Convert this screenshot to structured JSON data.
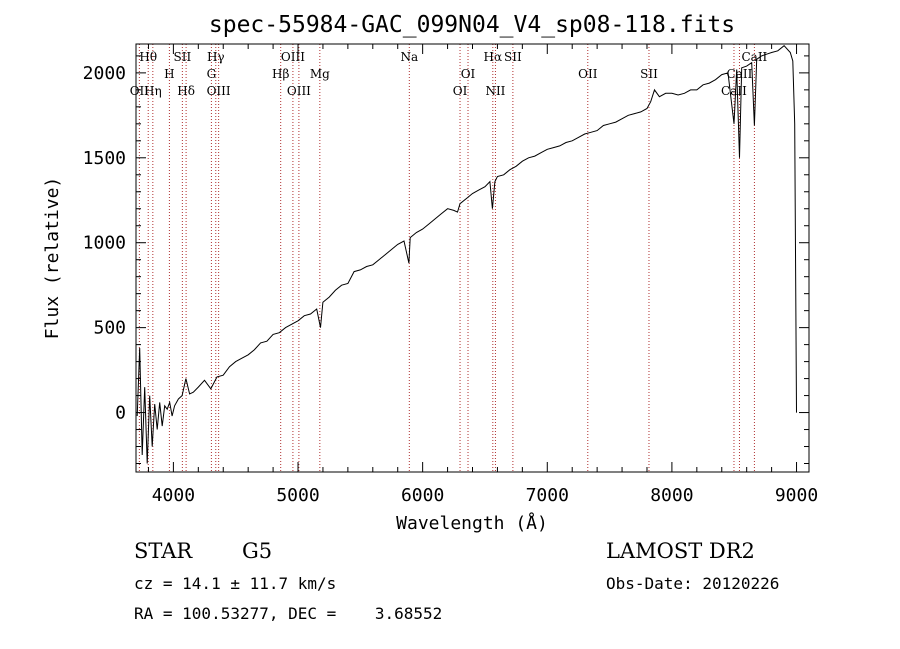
{
  "chart_data": {
    "type": "line",
    "title": "spec-55984-GAC_099N04_V4_sp08-118.fits",
    "xlabel": "Wavelength (Å)",
    "ylabel": "Flux (relative)",
    "xlim": [
      3700,
      9100
    ],
    "ylim": [
      -350,
      2170
    ],
    "xticks": [
      4000,
      5000,
      6000,
      7000,
      8000,
      9000
    ],
    "yticks": [
      0,
      500,
      1000,
      1500,
      2000
    ],
    "grid": false,
    "series": [
      {
        "color": "#000000",
        "x": [
          3710,
          3730,
          3750,
          3770,
          3790,
          3810,
          3830,
          3850,
          3870,
          3890,
          3910,
          3930,
          3950,
          3970,
          3990,
          4010,
          4040,
          4070,
          4100,
          4130,
          4160,
          4200,
          4250,
          4300,
          4350,
          4400,
          4450,
          4500,
          4550,
          4600,
          4650,
          4700,
          4750,
          4800,
          4850,
          4900,
          4950,
          5000,
          5050,
          5100,
          5150,
          5180,
          5200,
          5250,
          5300,
          5350,
          5400,
          5450,
          5500,
          5550,
          5600,
          5650,
          5700,
          5750,
          5800,
          5850,
          5890,
          5900,
          5950,
          6000,
          6050,
          6100,
          6150,
          6200,
          6250,
          6280,
          6300,
          6350,
          6400,
          6450,
          6500,
          6540,
          6560,
          6580,
          6600,
          6650,
          6700,
          6750,
          6800,
          6850,
          6900,
          6950,
          7000,
          7050,
          7100,
          7150,
          7200,
          7250,
          7300,
          7350,
          7400,
          7450,
          7500,
          7550,
          7600,
          7650,
          7700,
          7750,
          7800,
          7830,
          7860,
          7900,
          7950,
          8000,
          8050,
          8100,
          8150,
          8200,
          8250,
          8300,
          8350,
          8400,
          8450,
          8498,
          8520,
          8542,
          8560,
          8600,
          8640,
          8662,
          8680,
          8720,
          8760,
          8800,
          8850,
          8900,
          8950,
          8970,
          8985,
          9000
        ],
        "values": [
          -20,
          380,
          -250,
          150,
          -300,
          100,
          -200,
          50,
          -100,
          60,
          -80,
          40,
          20,
          60,
          -20,
          40,
          80,
          100,
          200,
          110,
          120,
          150,
          190,
          140,
          210,
          220,
          270,
          300,
          320,
          340,
          370,
          410,
          420,
          460,
          470,
          500,
          520,
          540,
          570,
          580,
          610,
          500,
          650,
          680,
          720,
          750,
          760,
          830,
          840,
          860,
          870,
          900,
          930,
          960,
          990,
          1010,
          880,
          1030,
          1060,
          1080,
          1110,
          1140,
          1170,
          1200,
          1190,
          1180,
          1230,
          1260,
          1290,
          1310,
          1330,
          1360,
          1200,
          1360,
          1390,
          1400,
          1430,
          1450,
          1480,
          1500,
          1510,
          1530,
          1550,
          1560,
          1570,
          1590,
          1600,
          1620,
          1640,
          1650,
          1660,
          1690,
          1700,
          1710,
          1730,
          1750,
          1760,
          1770,
          1790,
          1830,
          1900,
          1860,
          1880,
          1880,
          1870,
          1880,
          1900,
          1900,
          1930,
          1940,
          1960,
          1990,
          2000,
          1700,
          2020,
          1500,
          2030,
          2040,
          2060,
          1690,
          2080,
          2100,
          2110,
          2120,
          2130,
          2160,
          2120,
          2070,
          1700,
          0
        ]
      }
    ],
    "spectral_lines": [
      {
        "label": "Hθ",
        "x": 3798,
        "row": 1
      },
      {
        "label": "OII",
        "x": 3727,
        "row": 3
      },
      {
        "label": "Hη",
        "x": 3835,
        "row": 3
      },
      {
        "label": "SII",
        "x": 4072,
        "row": 1
      },
      {
        "label": "H",
        "x": 3968,
        "row": 2
      },
      {
        "label": "Hδ",
        "x": 4102,
        "row": 3
      },
      {
        "label": "Hγ",
        "x": 4340,
        "row": 1
      },
      {
        "label": "G",
        "x": 4305,
        "row": 2
      },
      {
        "label": "OIII",
        "x": 4363,
        "row": 3
      },
      {
        "label": "OIII",
        "x": 4959,
        "row": 1
      },
      {
        "label": "Hβ",
        "x": 4861,
        "row": 2
      },
      {
        "label": "OIII",
        "x": 5007,
        "row": 3
      },
      {
        "label": "Mg",
        "x": 5175,
        "row": 2
      },
      {
        "label": "Na",
        "x": 5893,
        "row": 1
      },
      {
        "label": "OI",
        "x": 6364,
        "row": 2
      },
      {
        "label": "OI",
        "x": 6300,
        "row": 3
      },
      {
        "label": "Hα",
        "x": 6563,
        "row": 1
      },
      {
        "label": "SII",
        "x": 6724,
        "row": 1
      },
      {
        "label": "NII",
        "x": 6584,
        "row": 3
      },
      {
        "label": "OII",
        "x": 7325,
        "row": 2
      },
      {
        "label": "SII",
        "x": 7816,
        "row": 2
      },
      {
        "label": "CaII",
        "x": 8662,
        "row": 1
      },
      {
        "label": "CaII",
        "x": 8542,
        "row": 2
      },
      {
        "label": "CaII",
        "x": 8498,
        "row": 3
      }
    ]
  },
  "info": {
    "object_class": "STAR",
    "subclass": "G5",
    "survey": "LAMOST DR2",
    "cz": "cz = 14.1 ± 11.7 km/s",
    "obs_date": "Obs-Date: 20120226",
    "coords": "RA = 100.53277, DEC =    3.68552"
  }
}
